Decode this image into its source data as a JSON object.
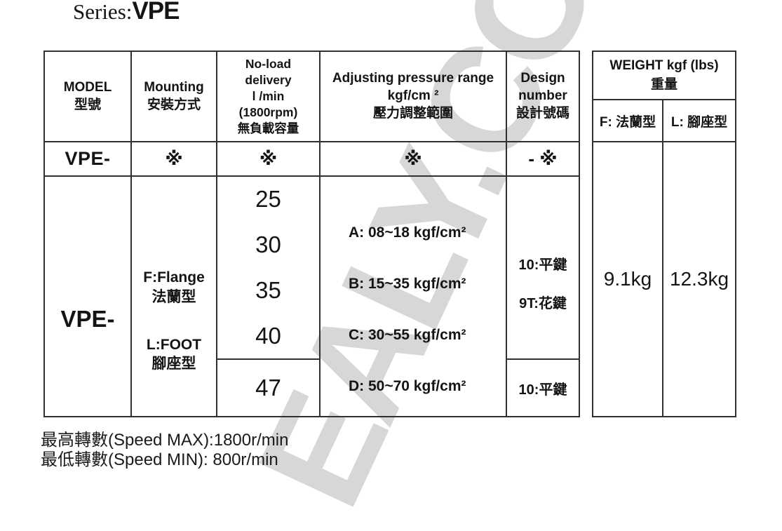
{
  "title": {
    "series_label": "Series:",
    "series_value": "VPE"
  },
  "watermark_text": "EALY.CO",
  "colors": {
    "border": "#303030",
    "text": "#141414",
    "watermark": "#d7d7d7"
  },
  "spec_table": {
    "headers": {
      "model": "MODEL\n型號",
      "mounting": "Mounting\n安裝方式",
      "delivery": "No-load\ndelivery\nl /min\n(1800rpm)\n無負載容量",
      "pressure": "Adjusting pressure range\nkgf/cm ²\n壓力調整範圍",
      "design": "Design\nnumber\n設計號碼"
    },
    "code_row": {
      "model": "VPE-",
      "mounting": "※",
      "delivery": "※",
      "pressure": "※",
      "design": "- ※"
    },
    "body": {
      "model": "VPE-",
      "mounting": {
        "flange_en": "F:Flange",
        "flange_zh": "法蘭型",
        "foot_en": "L:FOOT",
        "foot_zh": "腳座型"
      },
      "delivery_values": [
        "25",
        "30",
        "35",
        "40"
      ],
      "delivery_extra": "47",
      "pressure_options": [
        "A: 08~18 kgf/cm²",
        "B: 15~35 kgf/cm²",
        "C: 30~55 kgf/cm²",
        "D: 50~70 kgf/cm²"
      ],
      "design_options": [
        "10:平鍵",
        "9T:花鍵"
      ],
      "design_extra": "10:平鍵"
    }
  },
  "weight_table": {
    "header": "WEIGHT kgf (lbs)\n重量",
    "columns": [
      "F: 法蘭型",
      "L: 腳座型"
    ],
    "values": [
      "9.1kg",
      "12.3kg"
    ]
  },
  "footer": {
    "speed_max": "最高轉數(Speed MAX):1800r/min",
    "speed_min": "最低轉數(Speed MIN): 800r/min"
  }
}
